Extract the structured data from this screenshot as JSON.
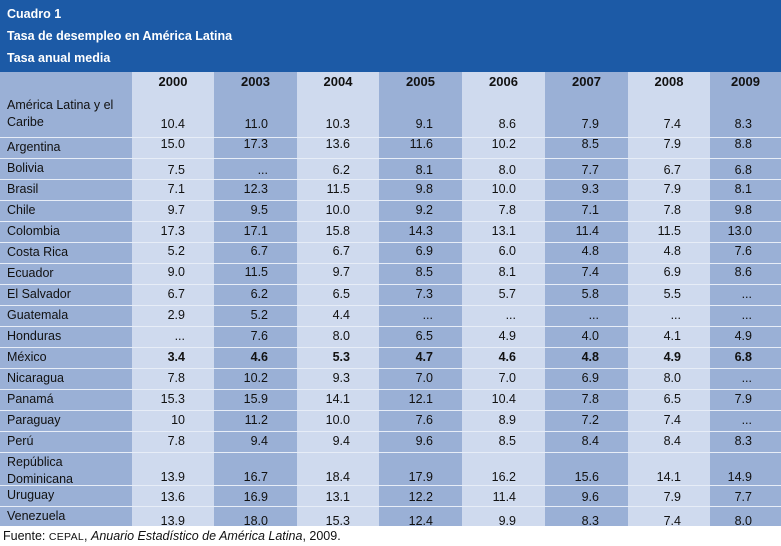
{
  "header": {
    "table_number": "Cuadro 1",
    "title": "Tasa de desempleo en América Latina",
    "subtitle": "Tasa anual media"
  },
  "years": [
    "2000",
    "2003",
    "2004",
    "2005",
    "2006",
    "2007",
    "2008",
    "2009"
  ],
  "rows": [
    {
      "name": "América Latina y el Caribe",
      "values": [
        "10.4",
        "11.0",
        "10.3",
        "9.1",
        "8.6",
        "7.9",
        "7.4",
        "8.3"
      ]
    },
    {
      "name": "Argentina",
      "values": [
        "15.0",
        "17.3",
        "13.6",
        "11.6",
        "10.2",
        "8.5",
        "7.9",
        "8.8"
      ]
    },
    {
      "name": "Bolivia",
      "values": [
        "7.5",
        "...",
        "6.2",
        "8.1",
        "8.0",
        "7.7",
        "6.7",
        "6.8"
      ]
    },
    {
      "name": "Brasil",
      "values": [
        "7.1",
        "12.3",
        "11.5",
        "9.8",
        "10.0",
        "9.3",
        "7.9",
        "8.1"
      ]
    },
    {
      "name": "Chile",
      "values": [
        "9.7",
        "9.5",
        "10.0",
        "9.2",
        "7.8",
        "7.1",
        "7.8",
        "9.8"
      ]
    },
    {
      "name": "Colombia",
      "values": [
        "17.3",
        "17.1",
        "15.8",
        "14.3",
        "13.1",
        "11.4",
        "11.5",
        "13.0"
      ]
    },
    {
      "name": "Costa Rica",
      "values": [
        "5.2",
        "6.7",
        "6.7",
        "6.9",
        "6.0",
        "4.8",
        "4.8",
        "7.6"
      ]
    },
    {
      "name": "Ecuador",
      "values": [
        "9.0",
        "11.5",
        "9.7",
        "8.5",
        "8.1",
        "7.4",
        "6.9",
        "8.6"
      ]
    },
    {
      "name": "El Salvador",
      "values": [
        "6.7",
        "6.2",
        "6.5",
        "7.3",
        "5.7",
        "5.8",
        "5.5",
        "..."
      ]
    },
    {
      "name": "Guatemala",
      "values": [
        "2.9",
        "5.2",
        "4.4",
        "...",
        "...",
        "...",
        "...",
        "..."
      ]
    },
    {
      "name": "Honduras",
      "values": [
        "...",
        "7.6",
        "8.0",
        "6.5",
        "4.9",
        "4.0",
        "4.1",
        "4.9"
      ]
    },
    {
      "name": "México",
      "bold": true,
      "values": [
        "3.4",
        "4.6",
        "5.3",
        "4.7",
        "4.6",
        "4.8",
        "4.9",
        "6.8"
      ]
    },
    {
      "name": "Nicaragua",
      "values": [
        "7.8",
        "10.2",
        "9.3",
        "7.0",
        "7.0",
        "6.9",
        "8.0",
        "..."
      ]
    },
    {
      "name": "Panamá",
      "values": [
        "15.3",
        "15.9",
        "14.1",
        "12.1",
        "10.4",
        "7.8",
        "6.5",
        "7.9"
      ]
    },
    {
      "name": "Paraguay",
      "values": [
        "10",
        "11.2",
        "10.0",
        "7.6",
        "8.9",
        "7.2",
        "7.4",
        "..."
      ]
    },
    {
      "name": "Perú",
      "values": [
        "7.8",
        "9.4",
        "9.4",
        "9.6",
        "8.5",
        "8.4",
        "8.4",
        "8.3"
      ]
    },
    {
      "name": "República Dominicana",
      "values": [
        "13.9",
        "16.7",
        "18.4",
        "17.9",
        "16.2",
        "15.6",
        "14.1",
        "14.9"
      ]
    },
    {
      "name": "Uruguay",
      "values": [
        "13.6",
        "16.9",
        "13.1",
        "12.2",
        "11.4",
        "9.6",
        "7.9",
        "7.7"
      ]
    },
    {
      "name": "Venezuela",
      "values": [
        "13.9",
        "18.0",
        "15.3",
        "12.4",
        "9.9",
        "8.3",
        "7.4",
        "8.0"
      ]
    }
  ],
  "source": {
    "prefix": "Fuente:",
    "org": "CEPAL",
    "publication": "Anuario Estadístico de América Latina",
    "year_suffix": ", 2009."
  }
}
